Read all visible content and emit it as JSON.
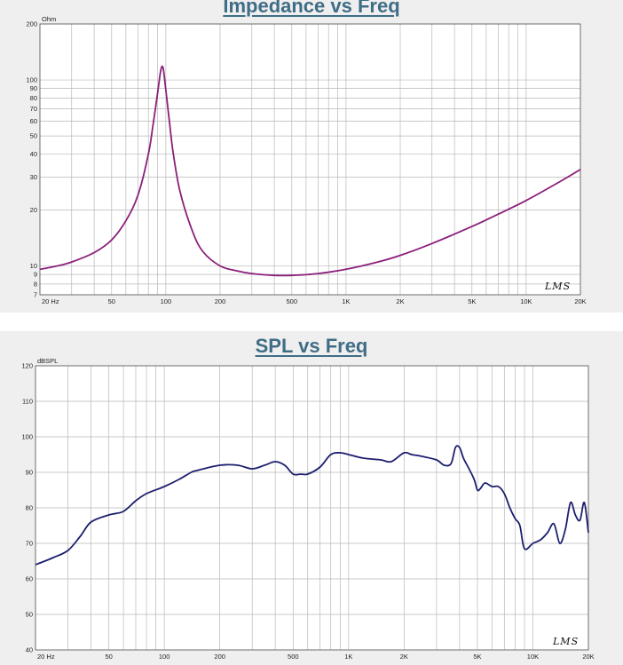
{
  "chart_data": [
    {
      "type": "line",
      "title": "Impedance vs Freq",
      "ylabel": "Ohm",
      "xscale": "log",
      "yscale": "log",
      "xlim": [
        20,
        20000
      ],
      "ylim": [
        7,
        200
      ],
      "grid": true,
      "x_tick_labels": [
        "20 Hz",
        "50",
        "100",
        "200",
        "500",
        "1K",
        "2K",
        "5K",
        "10K",
        "20K"
      ],
      "x_ticks": [
        20,
        50,
        100,
        200,
        500,
        1000,
        2000,
        5000,
        10000,
        20000
      ],
      "y_tick_labels": [
        "7",
        "8",
        "9",
        "10",
        "20",
        "30",
        "40",
        "50",
        "60",
        "70",
        "80",
        "90",
        "100",
        "200"
      ],
      "y_ticks": [
        7,
        8,
        9,
        10,
        20,
        30,
        40,
        50,
        60,
        70,
        80,
        90,
        100,
        200
      ],
      "watermark": "LMS",
      "line_color": "#8b1f7a",
      "series": [
        {
          "x": [
            20,
            25,
            30,
            40,
            50,
            60,
            70,
            80,
            85,
            90,
            93,
            95,
            97,
            100,
            105,
            110,
            120,
            140,
            160,
            200,
            250,
            300,
            400,
            500,
            700,
            1000,
            1500,
            2000,
            3000,
            5000,
            7000,
            10000,
            15000,
            20000
          ],
          "values": [
            9.6,
            10,
            10.5,
            11.8,
            13.8,
            17.5,
            24,
            40,
            58,
            85,
            108,
            118,
            113,
            88,
            58,
            40,
            25,
            15.5,
            12,
            10,
            9.4,
            9.1,
            8.9,
            8.9,
            9.1,
            9.6,
            10.5,
            11.4,
            13.2,
            16.3,
            19,
            22.5,
            28,
            33
          ]
        }
      ]
    },
    {
      "type": "line",
      "title": "SPL vs Freq",
      "ylabel": "dBSPL",
      "xscale": "log",
      "xlim": [
        20,
        20000
      ],
      "ylim": [
        40,
        120
      ],
      "grid": true,
      "x_tick_labels": [
        "20 Hz",
        "50",
        "100",
        "200",
        "500",
        "1K",
        "2K",
        "5K",
        "10K",
        "20K"
      ],
      "x_ticks": [
        20,
        50,
        100,
        200,
        500,
        1000,
        2000,
        5000,
        10000,
        20000
      ],
      "y_tick_labels": [
        "40",
        "50",
        "60",
        "70",
        "80",
        "90",
        "100",
        "110",
        "120"
      ],
      "y_ticks": [
        40,
        50,
        60,
        70,
        80,
        90,
        100,
        110,
        120
      ],
      "watermark": "LMS",
      "line_color": "#1c1f6e",
      "series": [
        {
          "x": [
            20,
            25,
            30,
            35,
            40,
            50,
            60,
            70,
            80,
            100,
            120,
            140,
            150,
            200,
            250,
            300,
            350,
            400,
            450,
            500,
            550,
            600,
            700,
            800,
            900,
            1000,
            1200,
            1500,
            1700,
            2000,
            2200,
            2500,
            3000,
            3300,
            3600,
            3800,
            4000,
            4200,
            4500,
            4800,
            5000,
            5200,
            5500,
            6000,
            6500,
            7000,
            7500,
            8000,
            8500,
            9000,
            10000,
            11000,
            12000,
            13000,
            14000,
            15000,
            16000,
            17000,
            18000,
            19000,
            20000
          ],
          "values": [
            64,
            66,
            68,
            72,
            76,
            78,
            79,
            82,
            84,
            86,
            88,
            90,
            90.5,
            92,
            92,
            91,
            92,
            93,
            92,
            89.5,
            89.5,
            89.5,
            91.5,
            95,
            95.5,
            95,
            94,
            93.5,
            93,
            95.5,
            95,
            94.5,
            93.5,
            92,
            92.5,
            97,
            97,
            94,
            91,
            88,
            85,
            85.5,
            87,
            86,
            86,
            84,
            80,
            77,
            75,
            68.5,
            70,
            71,
            73,
            75.5,
            70,
            74,
            81.5,
            78,
            76.5,
            81.5,
            73
          ]
        }
      ]
    }
  ]
}
